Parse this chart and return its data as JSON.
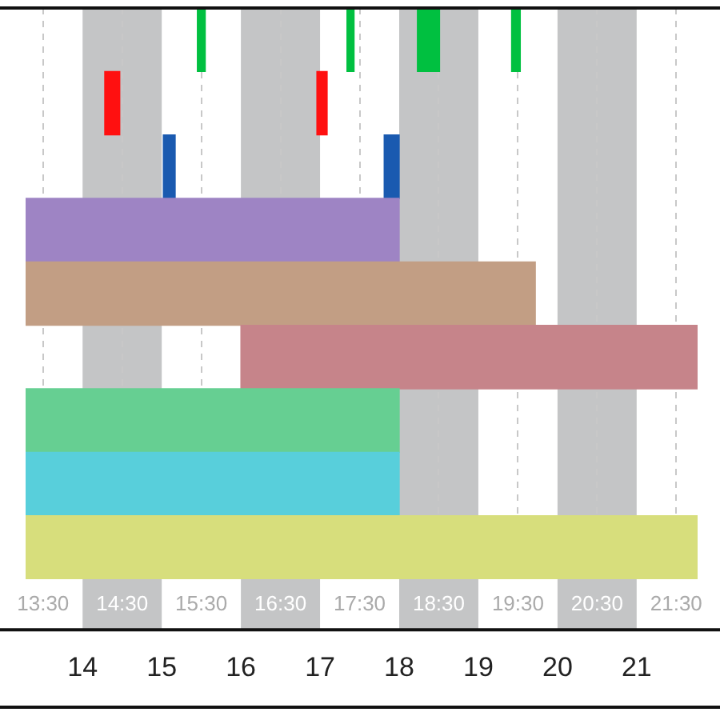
{
  "chart_data": {
    "type": "bar",
    "orientation": "horizontal",
    "categories": [
      null,
      null,
      null,
      null,
      null,
      null,
      null,
      null,
      null
    ],
    "series": [
      {
        "colors": [
          "#00c040",
          "#ff1010",
          "#1a5ab0",
          "#9e84c4",
          "#c29e84",
          "#c6848a",
          "#66cf92",
          "#58cfdb",
          "#d7de7c"
        ],
        "base": [
          15.45,
          14.28,
          15.02,
          13.28,
          13.28,
          16.0,
          13.28,
          13.28,
          13.28
        ],
        "values": [
          0.1,
          0.19,
          0.15,
          4.72,
          6.44,
          5.77,
          4.72,
          4.72,
          8.49
        ]
      },
      {
        "colors": [
          "#00c040",
          "#ff1010",
          "#1a5ab0",
          null,
          null,
          null,
          null,
          null,
          null
        ],
        "base": [
          17.34,
          16.96,
          17.81,
          null,
          null,
          null,
          null,
          null,
          null
        ],
        "values": [
          0.09,
          0.13,
          0.19,
          null,
          null,
          null,
          null,
          null,
          null
        ]
      },
      {
        "color": "#00c040",
        "base": [
          18.23,
          null,
          null,
          null,
          null,
          null,
          null,
          null,
          null
        ],
        "values": [
          0.28,
          null,
          null,
          null,
          null,
          null,
          null,
          null,
          null
        ]
      },
      {
        "color": "#00c040",
        "base": [
          19.42,
          null,
          null,
          null,
          null,
          null,
          null,
          null,
          null
        ],
        "values": [
          0.11,
          null,
          null,
          null,
          null,
          null,
          null,
          null,
          null
        ]
      }
    ],
    "xlim": [
      13.28,
      21.77
    ],
    "xticks": [
      14,
      15,
      16,
      17,
      18,
      19,
      20,
      21
    ],
    "x2lim": [
      13.28,
      21.77
    ],
    "x2ticks": [
      {
        "value": 13.5,
        "label": "13:30"
      },
      {
        "value": 14.5,
        "label": "14:30"
      },
      {
        "value": 15.5,
        "label": "15:30"
      },
      {
        "value": 16.5,
        "label": "16:30"
      },
      {
        "value": 17.5,
        "label": "17:30"
      },
      {
        "value": 18.5,
        "label": "18:30"
      },
      {
        "value": 19.5,
        "label": "19:30"
      },
      {
        "value": 20.5,
        "label": "20:30"
      },
      {
        "value": 21.5,
        "label": "21:30"
      }
    ],
    "bands": [
      {
        "axis": "x",
        "from": 14,
        "to": 15,
        "color": "#c4c5c6"
      },
      {
        "axis": "x",
        "from": 16,
        "to": 17,
        "color": "#c4c5c6"
      },
      {
        "axis": "x",
        "from": 18,
        "to": 19,
        "color": "#c4c5c6"
      },
      {
        "axis": "x",
        "from": 20,
        "to": 21,
        "color": "#c4c5c6"
      }
    ],
    "grid": "x",
    "tick_labels": "x",
    "legend": false
  }
}
